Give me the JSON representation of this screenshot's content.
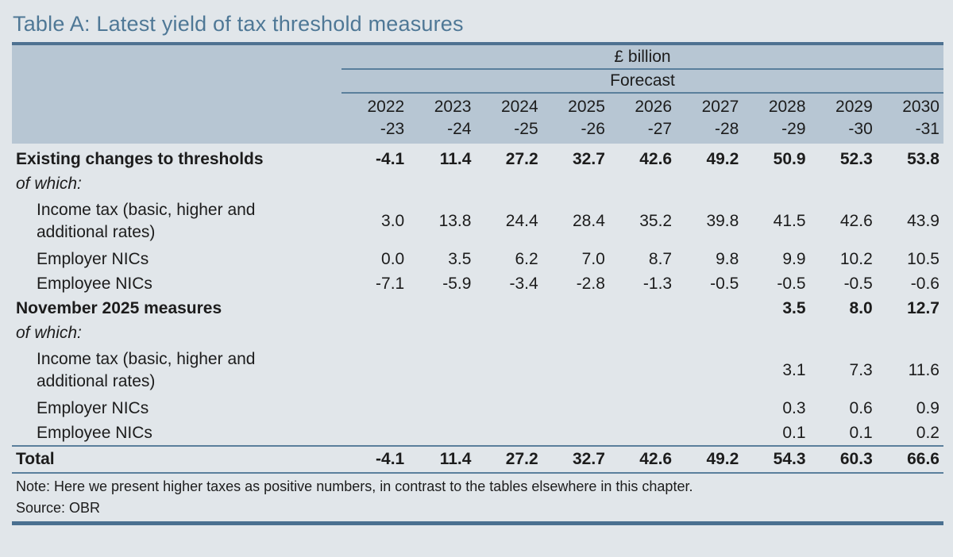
{
  "page": {
    "title": "Table A: Latest yield of tax threshold measures",
    "note": "Note: Here we present higher taxes as positive numbers, in contrast to the tables elsewhere in this chapter.",
    "source": "Source: OBR"
  },
  "colors": {
    "accent_title": "#4f7896",
    "header_band": "#b7c6d3",
    "rule_dark": "#4e7191",
    "rule_thin": "#5a7f9c",
    "rule_bottom": "#4a7090",
    "page_bg": "#e1e6ea"
  },
  "table": {
    "unit_header": "£ billion",
    "forecast_header": "Forecast",
    "year_columns": [
      [
        "2022",
        "-23"
      ],
      [
        "2023",
        "-24"
      ],
      [
        "2024",
        "-25"
      ],
      [
        "2025",
        "-26"
      ],
      [
        "2026",
        "-27"
      ],
      [
        "2027",
        "-28"
      ],
      [
        "2028",
        "-29"
      ],
      [
        "2029",
        "-30"
      ],
      [
        "2030",
        "-31"
      ]
    ],
    "rows": [
      {
        "label": "Existing changes to thresholds",
        "style": "section",
        "values": [
          "-4.1",
          "11.4",
          "27.2",
          "32.7",
          "42.6",
          "49.2",
          "50.9",
          "52.3",
          "53.8"
        ]
      },
      {
        "label": "of which:",
        "style": "ofwhich",
        "values": [
          "",
          "",
          "",
          "",
          "",
          "",
          "",
          "",
          ""
        ]
      },
      {
        "label_lines": [
          "Income tax (basic, higher and",
          "additional rates)"
        ],
        "style": "sub",
        "values": [
          "3.0",
          "13.8",
          "24.4",
          "28.4",
          "35.2",
          "39.8",
          "41.5",
          "42.6",
          "43.9"
        ]
      },
      {
        "label": "Employer NICs",
        "style": "sub",
        "values": [
          "0.0",
          "3.5",
          "6.2",
          "7.0",
          "8.7",
          "9.8",
          "9.9",
          "10.2",
          "10.5"
        ]
      },
      {
        "label": "Employee NICs",
        "style": "sub",
        "values": [
          "-7.1",
          "-5.9",
          "-3.4",
          "-2.8",
          "-1.3",
          "-0.5",
          "-0.5",
          "-0.5",
          "-0.6"
        ]
      },
      {
        "label": "November 2025 measures",
        "style": "section",
        "values": [
          "",
          "",
          "",
          "",
          "",
          "",
          "3.5",
          "8.0",
          "12.7"
        ]
      },
      {
        "label": "of which:",
        "style": "ofwhich",
        "values": [
          "",
          "",
          "",
          "",
          "",
          "",
          "",
          "",
          ""
        ]
      },
      {
        "label_lines": [
          "Income tax (basic, higher and",
          "additional rates)"
        ],
        "style": "sub",
        "values": [
          "",
          "",
          "",
          "",
          "",
          "",
          "3.1",
          "7.3",
          "11.6"
        ]
      },
      {
        "label": "Employer NICs",
        "style": "sub",
        "values": [
          "",
          "",
          "",
          "",
          "",
          "",
          "0.3",
          "0.6",
          "0.9"
        ]
      },
      {
        "label": "Employee NICs",
        "style": "sub",
        "values": [
          "",
          "",
          "",
          "",
          "",
          "",
          "0.1",
          "0.1",
          "0.2"
        ]
      }
    ],
    "total_row": {
      "label": "Total",
      "values": [
        "-4.1",
        "11.4",
        "27.2",
        "32.7",
        "42.6",
        "49.2",
        "54.3",
        "60.3",
        "66.6"
      ]
    }
  }
}
